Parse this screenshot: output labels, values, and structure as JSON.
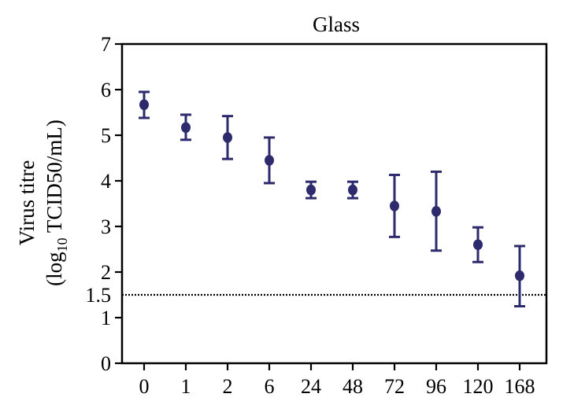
{
  "chart_data": {
    "type": "scatter",
    "title": "Glass",
    "xlabel": "",
    "ylabel_line1": "Virus titre",
    "ylabel_line2_pre": "(log",
    "ylabel_line2_sub": "10",
    "ylabel_line2_post": " TCID50/mL)",
    "categories": [
      "0",
      "1",
      "2",
      "6",
      "24",
      "48",
      "72",
      "96",
      "120",
      "168"
    ],
    "values": [
      5.67,
      5.17,
      4.95,
      4.45,
      3.8,
      3.8,
      3.45,
      3.33,
      2.6,
      1.92
    ],
    "error_low": [
      5.38,
      4.9,
      4.48,
      3.95,
      3.62,
      3.62,
      2.77,
      2.47,
      2.22,
      1.25
    ],
    "error_high": [
      5.95,
      5.45,
      5.42,
      4.95,
      3.98,
      3.98,
      4.13,
      4.2,
      2.98,
      2.57
    ],
    "ylim": [
      0,
      7
    ],
    "yticks": [
      0,
      1,
      2,
      3,
      4,
      5,
      6,
      7
    ],
    "ytick_labels": [
      "0",
      "1",
      "2",
      "3",
      "4",
      "5",
      "6",
      "7"
    ],
    "reference_line": {
      "value": 1.5,
      "label": "1.5",
      "style": "dotted"
    },
    "grid": false,
    "legend": "none",
    "colors": {
      "marker": "#2e2a6e",
      "axis": "#000000",
      "reference": "#000000"
    }
  }
}
